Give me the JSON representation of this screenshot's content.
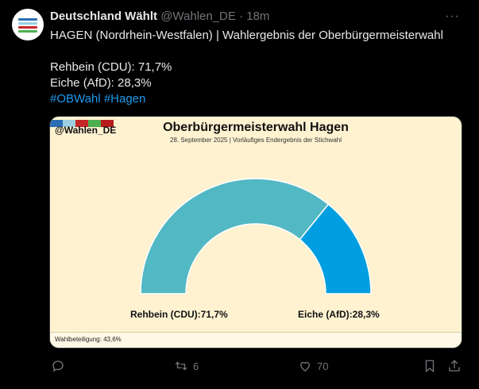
{
  "tweet": {
    "author": "Deutschland Wählt",
    "handle": "@Wahlen_DE",
    "time": "· 18m",
    "more": "···",
    "lines": [
      "HAGEN (Nordrhein-Westfalen) | Wahlergebnis der Oberbürgermeisterwahl",
      "",
      "Rehbein (CDU): 71,7%",
      "Eiche (AfD): 28,3%"
    ],
    "hashtags": [
      "#OBWahl",
      "#Hagen"
    ]
  },
  "card": {
    "handle": "@Wahlen_DE",
    "title": "Oberbürgermeisterwahl Hagen",
    "subtitle": "28. September 2025 | Vorläufiges Endergebnis der Stichwahl",
    "turnout": "Wahlbeteiligung: 43,6%"
  },
  "chart_data": {
    "type": "pie",
    "title": "Oberbürgermeisterwahl Hagen",
    "subtitle": "28. September 2025 | Vorläufiges Endergebnis der Stichwahl",
    "categories": [
      "Rehbein (CDU):",
      "Eiche (AfD):"
    ],
    "values": [
      71.7,
      28.3
    ],
    "value_labels": [
      "71,7%",
      "28,3%"
    ],
    "colors": [
      "#52b8c4",
      "#009ee0"
    ]
  },
  "actions": {
    "replies": "",
    "reposts": "6",
    "likes": "70"
  },
  "colors": {
    "accent": "#1d9bf0",
    "card_bg": "#fff2d1"
  },
  "icons": [
    "reply-icon",
    "repost-icon",
    "like-icon",
    "bookmark-icon",
    "share-icon"
  ]
}
